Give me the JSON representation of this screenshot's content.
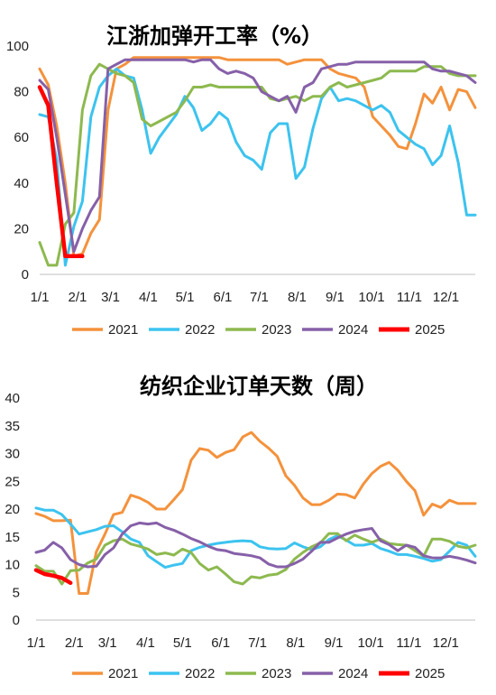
{
  "chart_data": [
    {
      "type": "line",
      "title": "江浙加弹开工率（%）",
      "xlabel": "",
      "ylabel": "",
      "ylim": [
        0,
        100
      ],
      "yticks": [
        0,
        20,
        40,
        60,
        80,
        100
      ],
      "xtick_labels": [
        "1/1",
        "2/1",
        "3/1",
        "4/1",
        "5/1",
        "6/1",
        "7/1",
        "8/1",
        "9/1",
        "10/1",
        "11/1",
        "12/1"
      ],
      "x_unit": "week",
      "grid": false,
      "legend": "bottom",
      "series": [
        {
          "name": "2021",
          "color": "#F4923C",
          "x": [
            1,
            2,
            3,
            4,
            5,
            6,
            7,
            8,
            9,
            10,
            11,
            12,
            13,
            14,
            15,
            16,
            17,
            18,
            19,
            20,
            21,
            22,
            23,
            24,
            25,
            26,
            27,
            28,
            29,
            30,
            31,
            32,
            33,
            34,
            35,
            36,
            37,
            38,
            39,
            40,
            41,
            42,
            43,
            44,
            45,
            46,
            47,
            48,
            49,
            50,
            51,
            52
          ],
          "values": [
            90,
            83,
            65,
            40,
            8,
            9,
            18,
            24,
            72,
            90,
            92,
            95,
            95,
            95,
            95,
            95,
            95,
            95,
            95,
            95,
            95,
            95,
            94,
            94,
            94,
            94,
            94,
            94,
            94,
            92,
            93,
            94,
            94,
            94,
            90,
            88,
            87,
            86,
            82,
            69,
            65,
            61,
            56,
            55,
            66,
            79,
            75,
            82,
            72,
            81,
            80,
            73
          ]
        },
        {
          "name": "2022",
          "color": "#3CC3EF",
          "x": [
            1,
            2,
            3,
            4,
            5,
            6,
            7,
            8,
            9,
            10,
            11,
            12,
            13,
            14,
            15,
            16,
            17,
            18,
            19,
            20,
            21,
            22,
            23,
            24,
            25,
            26,
            27,
            28,
            29,
            30,
            31,
            32,
            33,
            34,
            35,
            36,
            37,
            38,
            39,
            40,
            41,
            42,
            43,
            44,
            45,
            46,
            47,
            48,
            49,
            50,
            51,
            52
          ],
          "values": [
            70,
            69,
            50,
            4,
            21,
            32,
            69,
            82,
            87,
            90,
            87,
            86,
            72,
            53,
            60,
            65,
            70,
            78,
            73,
            63,
            66,
            71,
            68,
            58,
            52,
            50,
            46,
            62,
            66,
            66,
            42,
            47,
            64,
            77,
            82,
            76,
            77,
            76,
            74,
            72,
            74,
            71,
            63,
            60,
            57,
            55,
            48,
            52,
            65,
            49,
            26,
            26
          ]
        },
        {
          "name": "2023",
          "color": "#8DB94F",
          "x": [
            1,
            2,
            3,
            4,
            5,
            6,
            7,
            8,
            9,
            10,
            11,
            12,
            13,
            14,
            15,
            16,
            17,
            18,
            19,
            20,
            21,
            22,
            23,
            24,
            25,
            26,
            27,
            28,
            29,
            30,
            31,
            32,
            33,
            34,
            35,
            36,
            37,
            38,
            39,
            40,
            41,
            42,
            43,
            44,
            45,
            46,
            47,
            48,
            49,
            50,
            51,
            52
          ],
          "values": [
            14,
            4,
            4,
            22,
            27,
            72,
            87,
            92,
            90,
            88,
            87,
            84,
            68,
            65,
            67,
            69,
            71,
            76,
            82,
            82,
            83,
            82,
            82,
            82,
            82,
            82,
            82,
            77,
            76,
            77,
            78,
            76,
            78,
            78,
            82,
            84,
            82,
            83,
            84,
            85,
            86,
            89,
            89,
            89,
            89,
            91,
            91,
            91,
            88,
            87,
            87,
            87
          ]
        },
        {
          "name": "2024",
          "color": "#8660A8",
          "x": [
            1,
            2,
            3,
            4,
            5,
            6,
            7,
            8,
            9,
            10,
            11,
            12,
            13,
            14,
            15,
            16,
            17,
            18,
            19,
            20,
            21,
            22,
            23,
            24,
            25,
            26,
            27,
            28,
            29,
            30,
            31,
            32,
            33,
            34,
            35,
            36,
            37,
            38,
            39,
            40,
            41,
            42,
            43,
            44,
            45,
            46,
            47,
            48,
            49,
            50,
            51,
            52
          ],
          "values": [
            85,
            81,
            60,
            35,
            10,
            20,
            28,
            34,
            90,
            92,
            94,
            94,
            94,
            94,
            94,
            94,
            94,
            94,
            93,
            94,
            94,
            90,
            88,
            89,
            88,
            86,
            80,
            78,
            76,
            78,
            71,
            82,
            84,
            90,
            91,
            92,
            92,
            93,
            93,
            93,
            93,
            93,
            93,
            93,
            93,
            93,
            90,
            89,
            89,
            88,
            87,
            84
          ]
        },
        {
          "name": "2025",
          "color": "#FF0000",
          "x": [
            1,
            2,
            3,
            4,
            5,
            6
          ],
          "values": [
            82,
            74,
            40,
            8,
            8,
            8
          ]
        }
      ]
    },
    {
      "type": "line",
      "title": "纺织企业订单天数（周）",
      "xlabel": "",
      "ylabel": "",
      "ylim": [
        0,
        40
      ],
      "yticks": [
        0,
        5,
        10,
        15,
        20,
        25,
        30,
        35,
        40
      ],
      "xtick_labels": [
        "1/1",
        "2/1",
        "3/1",
        "4/1",
        "5/1",
        "6/1",
        "7/1",
        "8/1",
        "9/1",
        "10/1",
        "11/1",
        "12/1"
      ],
      "x_unit": "week",
      "grid": false,
      "legend": "bottom",
      "series": [
        {
          "name": "2021",
          "color": "#F4923C",
          "x": [
            1,
            2,
            3,
            4,
            5,
            6,
            7,
            8,
            9,
            10,
            11,
            12,
            13,
            14,
            15,
            16,
            17,
            18,
            19,
            20,
            21,
            22,
            23,
            24,
            25,
            26,
            27,
            28,
            29,
            30,
            31,
            32,
            33,
            34,
            35,
            36,
            37,
            38,
            39,
            40,
            41,
            42,
            43,
            44,
            45,
            46,
            47,
            48,
            49,
            50,
            51,
            52
          ],
          "values": [
            19.2,
            18.7,
            17.9,
            17.9,
            18.0,
            4.8,
            4.8,
            12.3,
            15.5,
            19.0,
            19.4,
            22.5,
            22.0,
            21.2,
            20.0,
            20.0,
            21.7,
            23.5,
            28.8,
            30.9,
            30.6,
            29.3,
            30.2,
            30.7,
            33.0,
            33.8,
            32.2,
            31.0,
            29.5,
            26.0,
            24.3,
            22.0,
            20.8,
            20.8,
            21.6,
            22.7,
            22.6,
            22.0,
            24.5,
            26.4,
            27.7,
            28.4,
            27.0,
            25.0,
            23.3,
            18.9,
            20.9,
            20.3,
            21.6,
            21.0,
            21.0,
            21.0
          ]
        },
        {
          "name": "2022",
          "color": "#3CC3EF",
          "x": [
            1,
            2,
            3,
            4,
            5,
            6,
            7,
            8,
            9,
            10,
            11,
            12,
            13,
            14,
            15,
            16,
            17,
            18,
            19,
            20,
            21,
            22,
            23,
            24,
            25,
            26,
            27,
            28,
            29,
            30,
            31,
            32,
            33,
            34,
            35,
            36,
            37,
            38,
            39,
            40,
            41,
            42,
            43,
            44,
            45,
            46,
            47,
            48,
            49,
            50,
            51,
            52
          ],
          "values": [
            20.2,
            19.8,
            19.8,
            19.0,
            17.3,
            15.5,
            15.9,
            16.3,
            16.9,
            17.0,
            15.9,
            14.6,
            14.0,
            11.6,
            10.5,
            9.5,
            9.9,
            10.2,
            12.5,
            13.1,
            13.5,
            13.8,
            14.0,
            14.2,
            14.3,
            14.2,
            13.2,
            12.9,
            12.8,
            12.9,
            13.9,
            13.2,
            12.7,
            13.2,
            14.5,
            15.2,
            14.4,
            13.5,
            13.5,
            13.8,
            12.9,
            12.4,
            11.8,
            11.8,
            11.5,
            11.1,
            10.6,
            10.9,
            12.4,
            14.0,
            13.5,
            11.5
          ]
        },
        {
          "name": "2023",
          "color": "#8DB94F",
          "x": [
            1,
            2,
            3,
            4,
            5,
            6,
            7,
            8,
            9,
            10,
            11,
            12,
            13,
            14,
            15,
            16,
            17,
            18,
            19,
            20,
            21,
            22,
            23,
            24,
            25,
            26,
            27,
            28,
            29,
            30,
            31,
            32,
            33,
            34,
            35,
            36,
            37,
            38,
            39,
            40,
            41,
            42,
            43,
            44,
            45,
            46,
            47,
            48,
            49,
            50,
            51,
            52
          ],
          "values": [
            9.8,
            8.8,
            8.8,
            6.5,
            8.9,
            9.0,
            10.3,
            11.0,
            13.5,
            14.3,
            14.6,
            13.7,
            13.3,
            12.8,
            11.8,
            12.1,
            11.7,
            12.8,
            12.2,
            10.2,
            9.0,
            9.6,
            8.3,
            6.9,
            6.5,
            7.8,
            7.6,
            8.1,
            8.3,
            9.1,
            11.0,
            12.2,
            13.2,
            13.9,
            15.6,
            15.6,
            14.3,
            15.3,
            14.6,
            14.0,
            14.6,
            13.8,
            13.6,
            13.5,
            12.5,
            11.5,
            14.6,
            14.6,
            14.2,
            13.3,
            13.0,
            13.5
          ]
        },
        {
          "name": "2024",
          "color": "#8660A8",
          "x": [
            1,
            2,
            3,
            4,
            5,
            6,
            7,
            8,
            9,
            10,
            11,
            12,
            13,
            14,
            15,
            16,
            17,
            18,
            19,
            20,
            21,
            22,
            23,
            24,
            25,
            26,
            27,
            28,
            29,
            30,
            31,
            32,
            33,
            34,
            35,
            36,
            37,
            38,
            39,
            40,
            41,
            42,
            43,
            44,
            45,
            46,
            47,
            48,
            49,
            50,
            51,
            52
          ],
          "values": [
            12.2,
            12.6,
            14.0,
            13.0,
            10.9,
            10.0,
            9.6,
            9.7,
            11.8,
            13.0,
            15.5,
            17.0,
            17.5,
            17.3,
            17.5,
            16.7,
            16.2,
            15.5,
            14.7,
            14.1,
            13.3,
            12.7,
            12.5,
            12.0,
            11.8,
            11.6,
            11.2,
            10.1,
            9.6,
            9.6,
            10.2,
            11.0,
            12.4,
            14.0,
            14.0,
            14.8,
            15.5,
            16.0,
            16.3,
            16.5,
            14.3,
            13.6,
            12.5,
            13.5,
            13.1,
            11.6,
            11.2,
            11.2,
            11.5,
            11.2,
            10.8,
            10.3
          ]
        },
        {
          "name": "2025",
          "color": "#FF0000",
          "x": [
            1,
            2,
            3,
            4,
            5
          ],
          "values": [
            9.0,
            8.3,
            8.0,
            7.6,
            6.7
          ]
        }
      ]
    }
  ]
}
